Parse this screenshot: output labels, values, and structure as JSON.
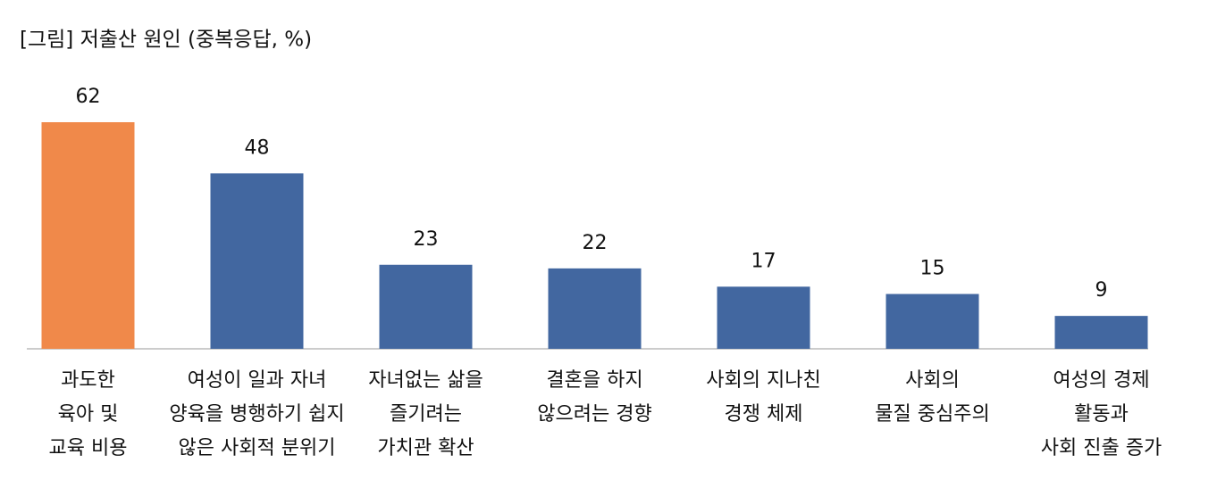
{
  "chart_data": {
    "type": "bar",
    "title": "[그림] 저출산 원인 (중복응답, %)",
    "categories": [
      [
        "과도한",
        "육아 및",
        "교육 비용"
      ],
      [
        "여성이 일과 자녀",
        "양육을 병행하기 쉽지",
        "않은 사회적 분위기"
      ],
      [
        "자녀없는 삶을",
        "즐기려는",
        "가치관 확산"
      ],
      [
        "결혼을 하지",
        "않으려는 경향"
      ],
      [
        "사회의 지나친",
        "경쟁 체제"
      ],
      [
        "사회의",
        "물질 중심주의"
      ],
      [
        "여성의 경제",
        "활동과",
        "사회 진출 증가"
      ]
    ],
    "values": [
      62,
      48,
      23,
      22,
      17,
      15,
      9
    ],
    "colors": [
      "#f0894a",
      "#4267a0",
      "#4267a0",
      "#4267a0",
      "#4267a0",
      "#4267a0",
      "#4267a0"
    ]
  }
}
